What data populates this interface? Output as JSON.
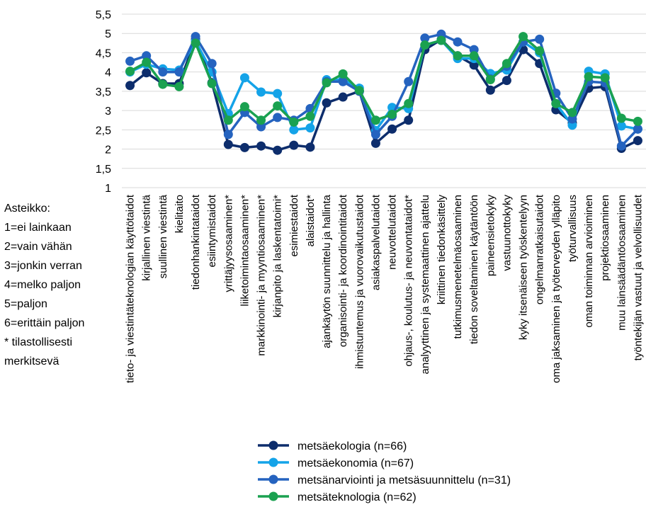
{
  "chart_data": {
    "type": "line",
    "ylim": [
      1,
      5.5
    ],
    "yticks": [
      "1",
      "1,5",
      "2",
      "2,5",
      "3",
      "3,5",
      "4",
      "4,5",
      "5",
      "5,5"
    ],
    "grid": true,
    "legend_position": "bottom",
    "categories": [
      "tieto- ja viestintäteknologian käyttötaidot",
      "kirjallinen viestintä",
      "suullinen viestintä",
      "kielitaito",
      "tiedonhankintataidot",
      "esiintymistaidot",
      "yrittäjyysosaaminen*",
      "liiketoimintaosaaminen*",
      "markkinointi- ja myyntiosaaminen*",
      "kirjanpito ja laskentatoimi*",
      "esimiestaidot",
      "alaistaidot*",
      "ajankäytön suunnittelu ja hallinta",
      "organisointi- ja koordinointitaidot",
      "ihmistuntemus ja vuorovaikutustaidot",
      "asiakaspalvelutaidot",
      "neuvottelutaidot",
      "ohjaus-, koulutus- ja neuvontataidot*",
      "analyyttinen ja systemaattinen ajattelu",
      "kriittinen tiedonkäsittely",
      "tutkimusmenetelmäosaaminen",
      "tiedon soveltaminen käytäntöön",
      "paineensietokyky",
      "vastuunottokyky",
      "kyky itsenäiseen työskentelyyn",
      "ongelmanratkaisutaidot",
      "oma jaksaminen ja työterveyden ylläpito",
      "työturvallisuus",
      "oman toiminnan arvioiminen",
      "projektiosaaminen",
      "muu lainsäädäntöosaaminen",
      "työntekijän vastuut ja velvollisuudet"
    ],
    "series": [
      {
        "name": "metsäekologia (n=66)",
        "color": "#0d2d6c",
        "values": [
          3.65,
          3.98,
          3.7,
          3.7,
          4.85,
          3.72,
          2.12,
          2.04,
          2.08,
          1.97,
          2.1,
          2.05,
          3.2,
          3.35,
          3.5,
          2.15,
          2.52,
          2.75,
          4.58,
          4.84,
          4.42,
          4.18,
          3.53,
          3.78,
          4.58,
          4.22,
          3.02,
          2.68,
          3.58,
          3.62,
          2.02,
          2.22
        ]
      },
      {
        "name": "metsäekonomia (n=67)",
        "color": "#14a3e8",
        "values": [
          4.0,
          4.2,
          4.08,
          4.05,
          4.8,
          4.0,
          2.92,
          3.85,
          3.48,
          3.44,
          2.5,
          2.55,
          3.8,
          3.8,
          3.58,
          2.48,
          3.08,
          3.05,
          4.7,
          4.82,
          4.35,
          4.35,
          3.96,
          4.05,
          4.78,
          4.5,
          3.18,
          2.62,
          4.02,
          3.95,
          2.6,
          2.52
        ]
      },
      {
        "name": "metsänarviointi ja metsäsuunnittelu (n=31)",
        "color": "#2563bf",
        "values": [
          4.28,
          4.42,
          4.0,
          4.0,
          4.92,
          4.22,
          2.38,
          2.95,
          2.58,
          2.82,
          2.75,
          3.05,
          3.75,
          3.75,
          3.5,
          2.38,
          2.85,
          3.75,
          4.88,
          4.98,
          4.78,
          4.58,
          3.82,
          4.15,
          4.78,
          4.85,
          3.45,
          2.78,
          3.75,
          3.72,
          2.08,
          2.52
        ]
      },
      {
        "name": "metsäteknologia (n=62)",
        "color": "#1aa150",
        "values": [
          4.02,
          4.25,
          3.68,
          3.62,
          4.75,
          3.7,
          2.75,
          3.1,
          2.75,
          3.12,
          2.7,
          2.85,
          3.72,
          3.95,
          3.52,
          2.75,
          2.9,
          3.18,
          4.7,
          4.82,
          4.42,
          4.42,
          3.8,
          4.22,
          4.92,
          4.55,
          3.18,
          2.95,
          3.88,
          3.85,
          2.8,
          2.72
        ]
      }
    ]
  },
  "scale_note": {
    "title": "Asteikko:",
    "lines": [
      "1=ei lainkaan",
      "2=vain vähän",
      "3=jonkin verran",
      "4=melko paljon",
      "5=paljon",
      "6=erittäin paljon",
      "* tilastollisesti",
      "merkitsevä"
    ]
  }
}
